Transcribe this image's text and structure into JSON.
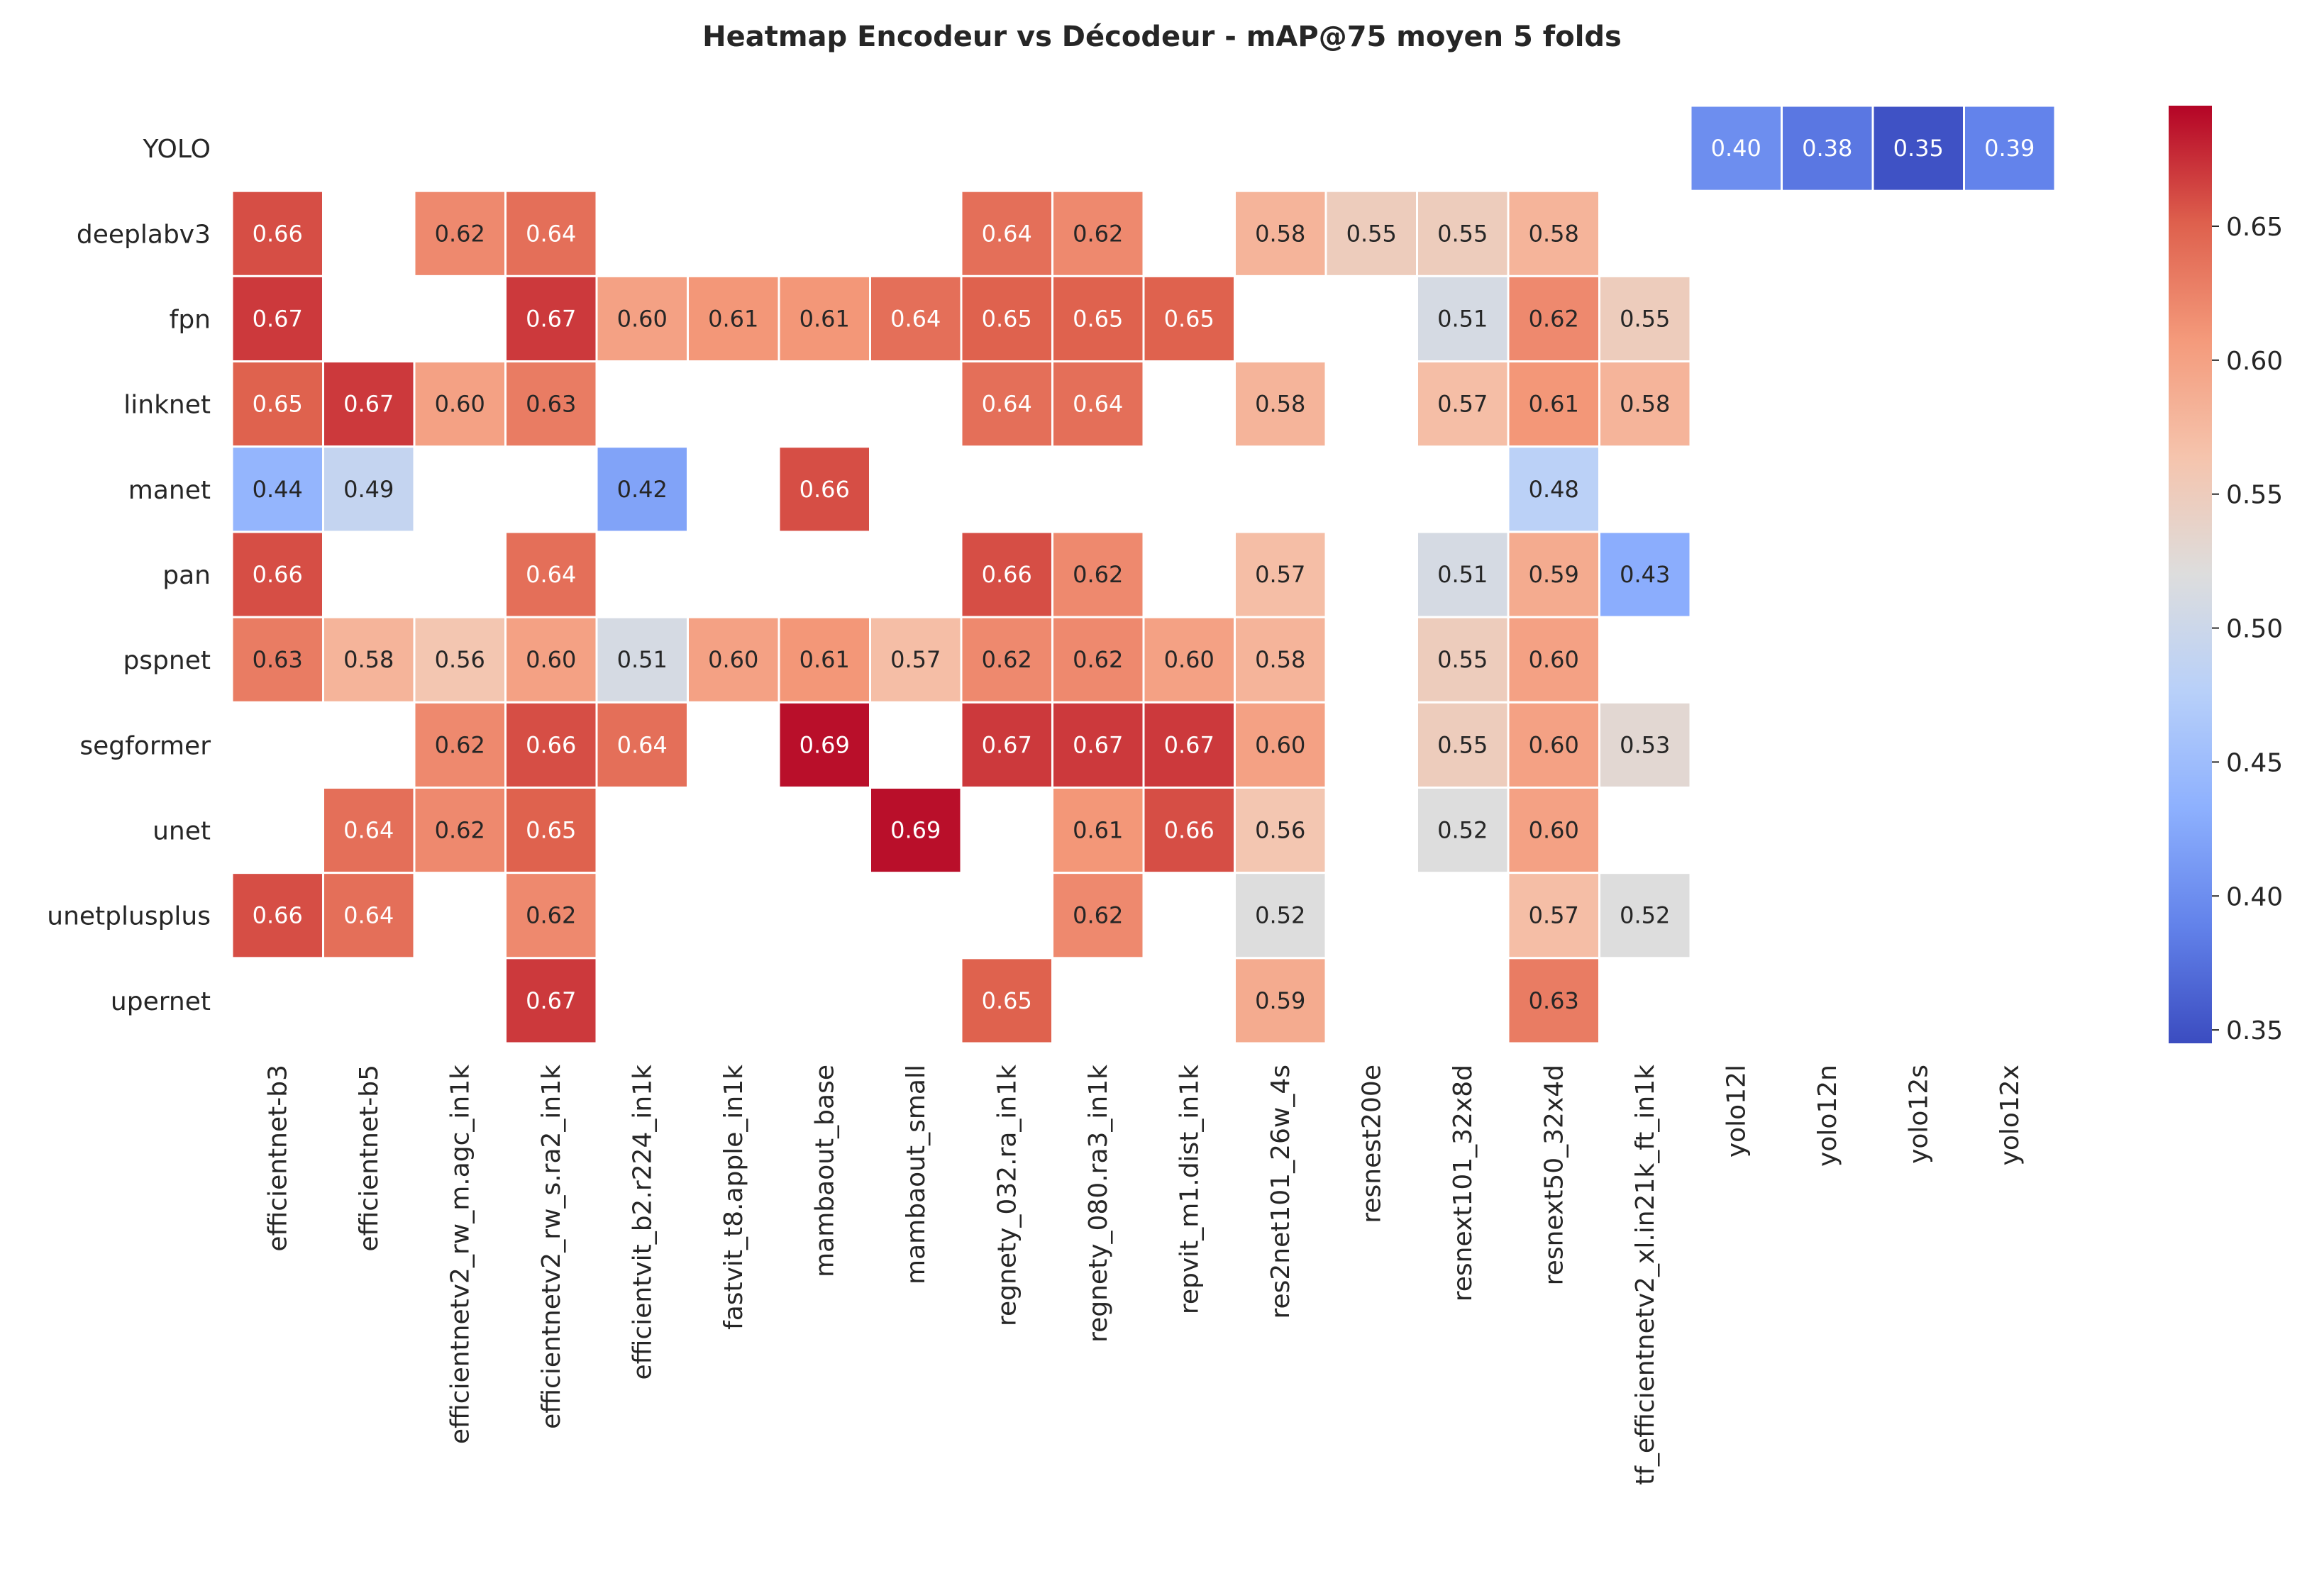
{
  "chart_data": {
    "type": "heatmap",
    "title": "Heatmap Encodeur vs Décodeur - mAP@75 moyen 5 folds",
    "xlabel": "",
    "ylabel": "",
    "colormap": "coolwarm",
    "vmin": 0.345,
    "vmax": 0.695,
    "colorbar_ticks": [
      "0.35",
      "0.40",
      "0.45",
      "0.50",
      "0.55",
      "0.60",
      "0.65"
    ],
    "colorbar_tick_values": [
      0.35,
      0.4,
      0.45,
      0.5,
      0.55,
      0.6,
      0.65
    ],
    "rows": [
      "YOLO",
      "deeplabv3",
      "fpn",
      "linknet",
      "manet",
      "pan",
      "pspnet",
      "segformer",
      "unet",
      "unetplusplus",
      "upernet"
    ],
    "columns": [
      "efficientnet-b3",
      "efficientnet-b5",
      "efficientnetv2_rw_m.agc_in1k",
      "efficientnetv2_rw_s.ra2_in1k",
      "efficientvit_b2.r224_in1k",
      "fastvit_t8.apple_in1k",
      "mambaout_base",
      "mambaout_small",
      "regnety_032.ra_in1k",
      "regnety_080.ra3_in1k",
      "repvit_m1.dist_in1k",
      "res2net101_26w_4s",
      "resnest200e",
      "resnext101_32x8d",
      "resnext50_32x4d",
      "tf_efficientnetv2_xl.in21k_ft_in1k",
      "yolo12l",
      "yolo12n",
      "yolo12s",
      "yolo12x"
    ],
    "values": [
      [
        null,
        null,
        null,
        null,
        null,
        null,
        null,
        null,
        null,
        null,
        null,
        null,
        null,
        null,
        null,
        null,
        0.4,
        0.38,
        0.35,
        0.39
      ],
      [
        0.66,
        null,
        0.62,
        0.64,
        null,
        null,
        null,
        null,
        0.64,
        0.62,
        null,
        0.58,
        0.55,
        0.55,
        0.58,
        null,
        null,
        null,
        null,
        null
      ],
      [
        0.67,
        null,
        null,
        0.67,
        0.6,
        0.61,
        0.61,
        0.64,
        0.65,
        0.65,
        0.65,
        null,
        null,
        0.51,
        0.62,
        0.55,
        null,
        null,
        null,
        null
      ],
      [
        0.65,
        0.67,
        0.6,
        0.63,
        null,
        null,
        null,
        null,
        0.64,
        0.64,
        null,
        0.58,
        null,
        0.57,
        0.61,
        0.58,
        null,
        null,
        null,
        null
      ],
      [
        0.44,
        0.49,
        null,
        null,
        0.42,
        null,
        0.66,
        null,
        null,
        null,
        null,
        null,
        null,
        null,
        0.48,
        null,
        null,
        null,
        null,
        null
      ],
      [
        0.66,
        null,
        null,
        0.64,
        null,
        null,
        null,
        null,
        0.66,
        0.62,
        null,
        0.57,
        null,
        0.51,
        0.59,
        0.43,
        null,
        null,
        null,
        null
      ],
      [
        0.63,
        0.58,
        0.56,
        0.6,
        0.51,
        0.6,
        0.61,
        0.57,
        0.62,
        0.62,
        0.6,
        0.58,
        null,
        0.55,
        0.6,
        null,
        null,
        null,
        null,
        null
      ],
      [
        null,
        null,
        0.62,
        0.66,
        0.64,
        null,
        0.69,
        null,
        0.67,
        0.67,
        0.67,
        0.6,
        null,
        0.55,
        0.6,
        0.53,
        null,
        null,
        null,
        null
      ],
      [
        null,
        0.64,
        0.62,
        0.65,
        null,
        null,
        null,
        0.69,
        null,
        0.61,
        0.66,
        0.56,
        null,
        0.52,
        0.6,
        null,
        null,
        null,
        null,
        null
      ],
      [
        0.66,
        0.64,
        null,
        0.62,
        null,
        null,
        null,
        null,
        null,
        0.62,
        null,
        0.52,
        null,
        null,
        0.57,
        0.52,
        null,
        null,
        null,
        null
      ],
      [
        null,
        null,
        null,
        0.67,
        null,
        null,
        null,
        null,
        0.65,
        null,
        null,
        0.59,
        null,
        null,
        0.63,
        null,
        null,
        null,
        null,
        null
      ]
    ]
  }
}
